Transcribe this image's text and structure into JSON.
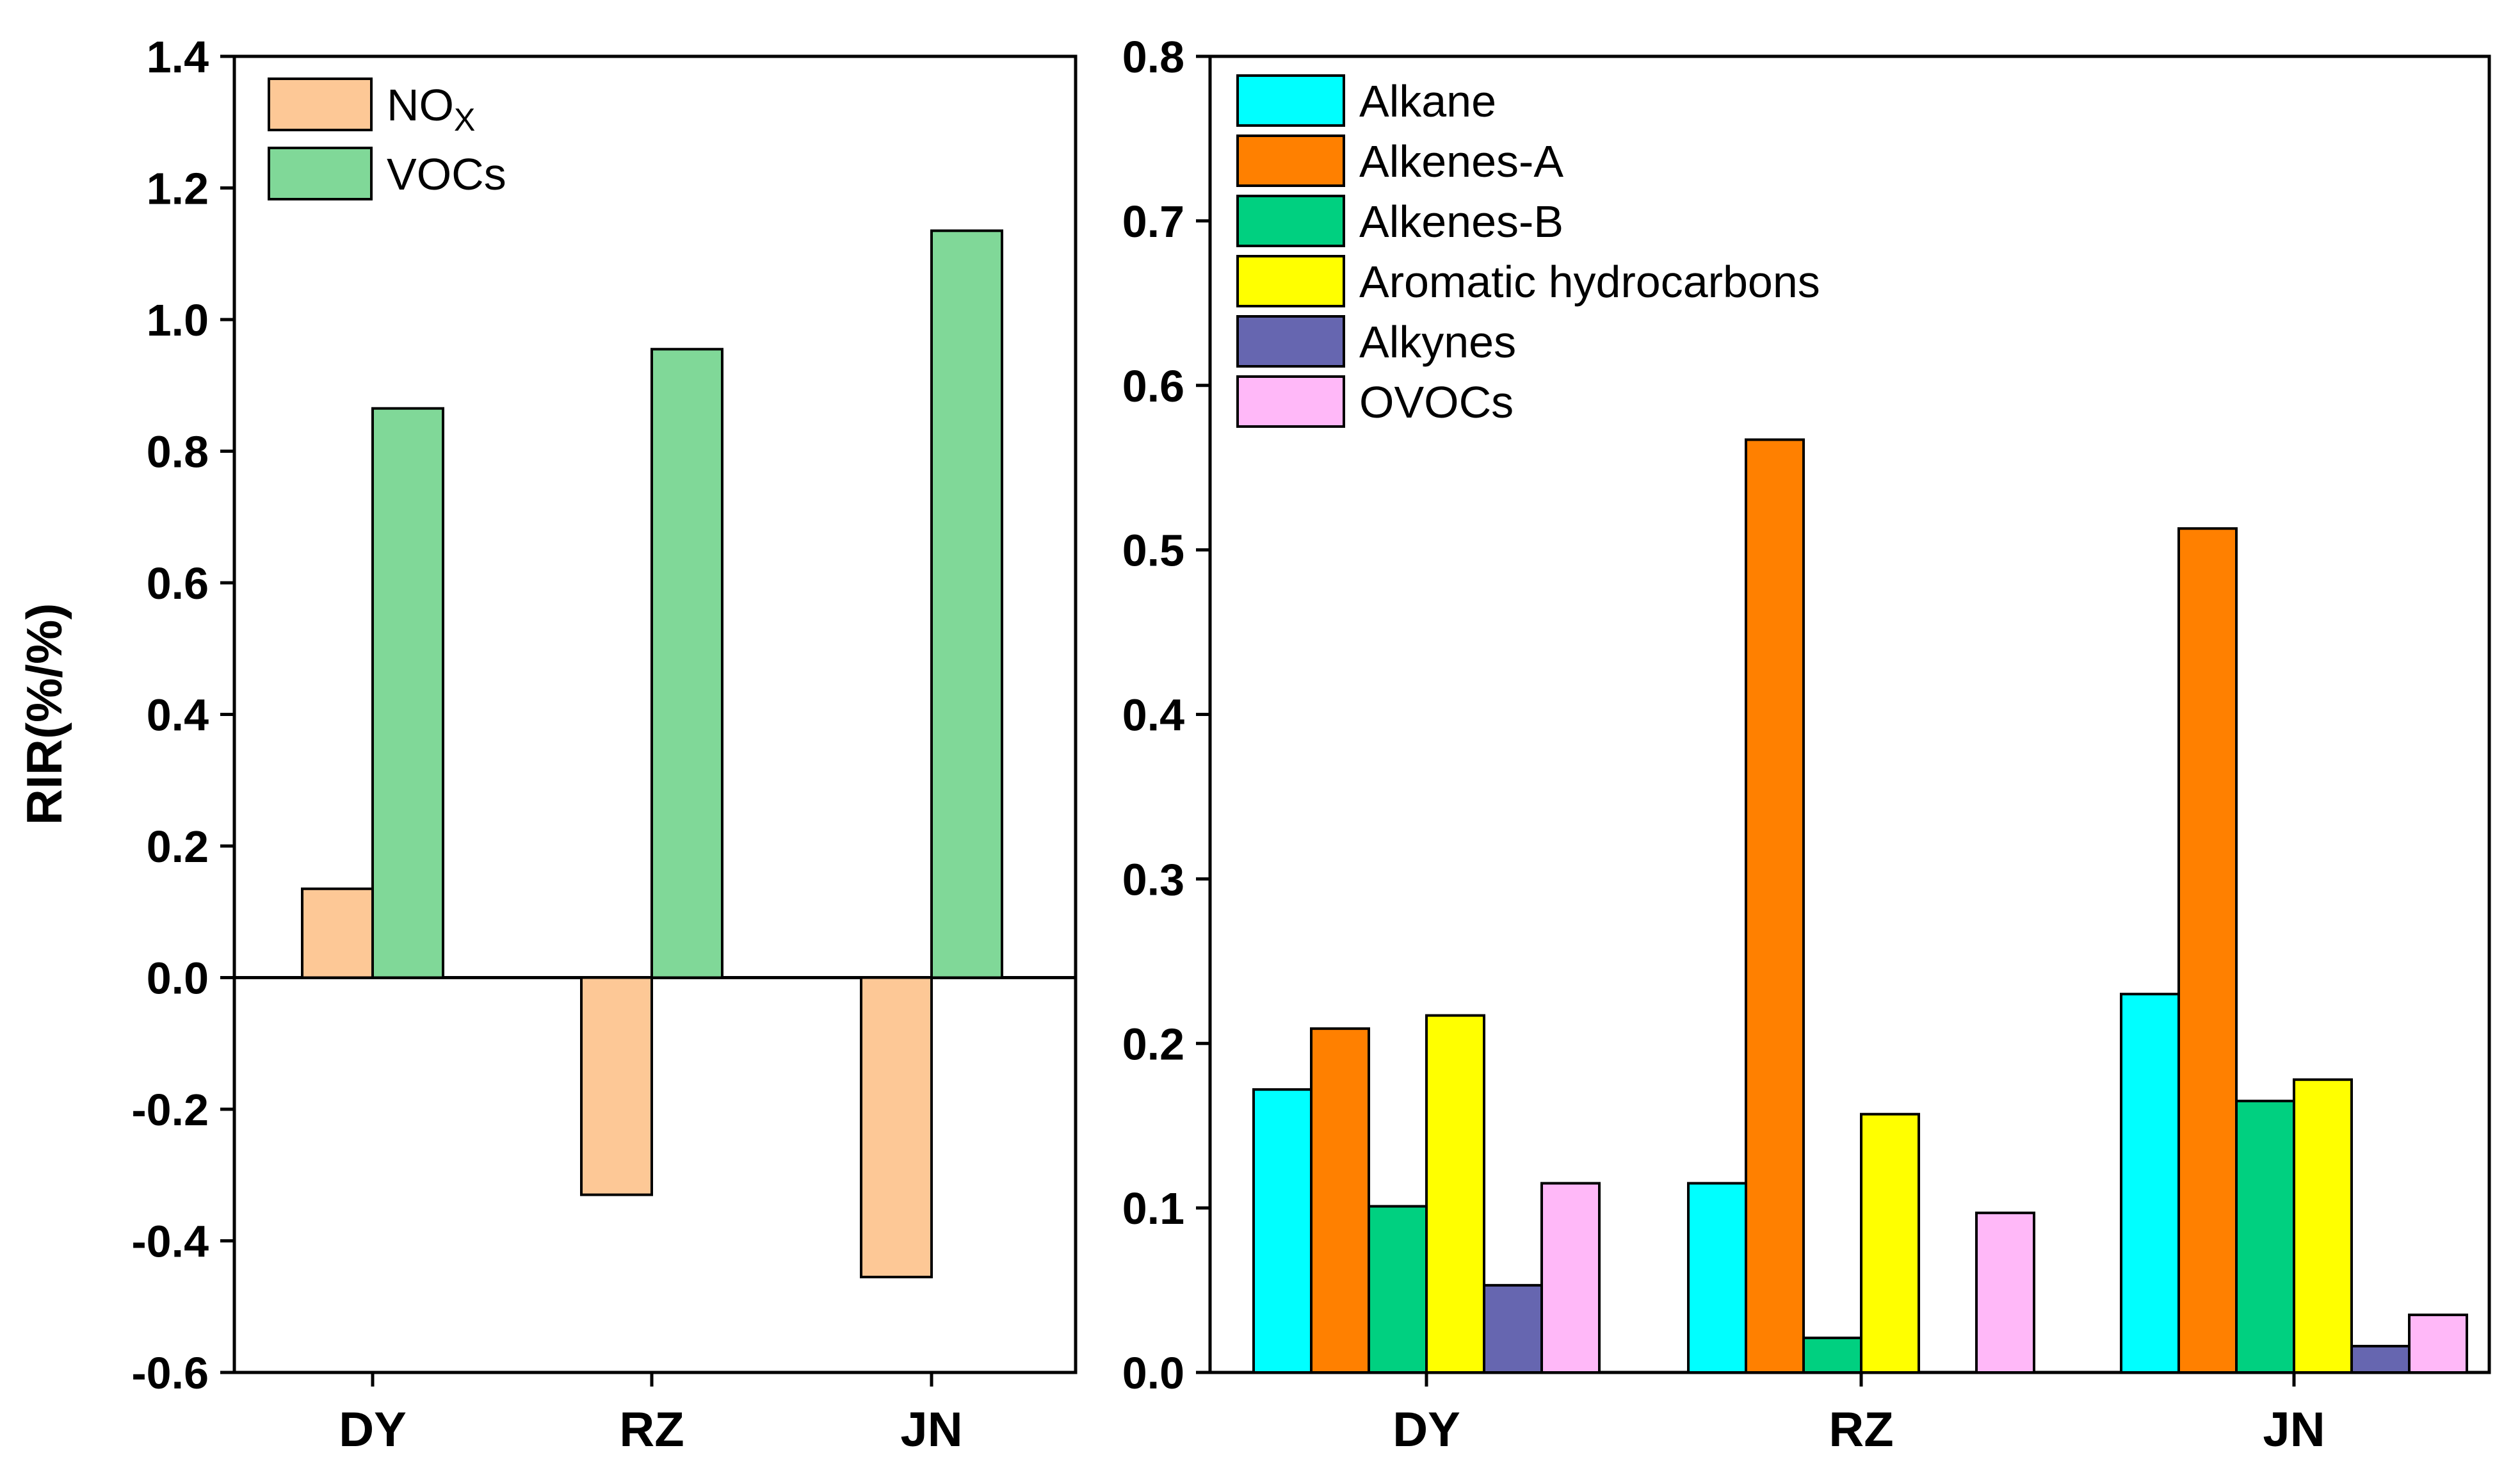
{
  "chart_data": [
    {
      "type": "bar",
      "categories": [
        "DY",
        "RZ",
        "JN"
      ],
      "ylabel": "RIR(%/%)",
      "ylim": [
        -0.6,
        1.4
      ],
      "yticks": [
        "1.4",
        "1.2",
        "1.0",
        "0.8",
        "0.6",
        "0.4",
        "0.2",
        "0.0",
        "-0.2",
        "-0.4",
        "-0.6"
      ],
      "legend": "top-left",
      "series": [
        {
          "name": "NO",
          "name_sub": "X",
          "color": "#FDC896",
          "values": [
            0.135,
            -0.33,
            -0.455
          ]
        },
        {
          "name": "VOCs",
          "color": "#80D898",
          "values": [
            0.865,
            0.955,
            1.135
          ]
        }
      ]
    },
    {
      "type": "bar",
      "categories": [
        "DY",
        "RZ",
        "JN"
      ],
      "ylim": [
        0,
        0.8
      ],
      "yticks": [
        "0.8",
        "0.7",
        "0.6",
        "0.5",
        "0.4",
        "0.3",
        "0.2",
        "0.1",
        "0.0"
      ],
      "legend": "top-left",
      "series": [
        {
          "name": "Alkane",
          "color": "#00FFFF",
          "values": [
            0.172,
            0.115,
            0.23
          ]
        },
        {
          "name": "Alkenes-A",
          "color": "#FF8000",
          "values": [
            0.209,
            0.567,
            0.513
          ]
        },
        {
          "name": "Alkenes-B",
          "color": "#00D080",
          "values": [
            0.101,
            0.021,
            0.165
          ]
        },
        {
          "name": "Aromatic hydrocarbons",
          "color": "#FFFF00",
          "values": [
            0.217,
            0.157,
            0.178
          ]
        },
        {
          "name": "Alkynes",
          "color": "#6666B0",
          "values": [
            0.053,
            0,
            0.016
          ]
        },
        {
          "name": "OVOCs",
          "color": "#FFB8F8",
          "values": [
            0.115,
            0.097,
            0.035
          ]
        }
      ]
    }
  ]
}
